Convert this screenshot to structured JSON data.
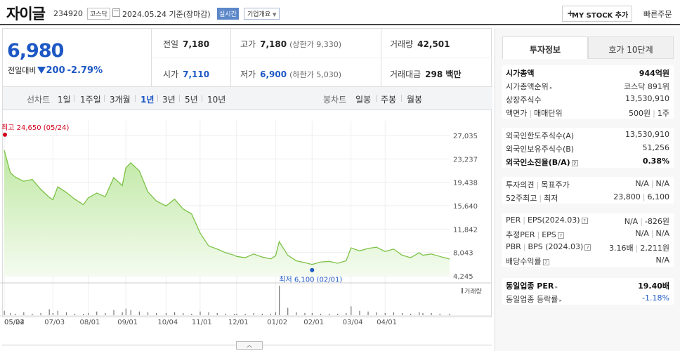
{
  "header": {
    "name": "자이글",
    "code": "234920",
    "market": "코스닥",
    "date": "2024.05.24",
    "basis": "기준(장마감)",
    "realtime": "실시간",
    "corp_overview": "기업개요",
    "mystock": "MY STOCK 추가",
    "fast_order": "빠른주문"
  },
  "price": {
    "current": "6,980",
    "change_label": "전일대비",
    "change": "200",
    "rate": "-2.79%"
  },
  "quote": {
    "prev_label": "전일",
    "prev": "7,180",
    "high_label": "고가",
    "high": "7,180",
    "upper_label": "(상한가",
    "upper": "9,330)",
    "volume_label": "거래량",
    "volume": "42,501",
    "open_label": "시가",
    "open": "7,110",
    "low_label": "저가",
    "low": "6,900",
    "lower_label": "(하한가",
    "lower": "5,030)",
    "amount_label": "거래대금",
    "amount": "298 백만"
  },
  "periods": {
    "line_label": "선차트",
    "items": [
      "1일",
      "1주일",
      "3개월",
      "1년",
      "3년",
      "5년",
      "10년"
    ],
    "active": "1년",
    "candle_label": "봉차트",
    "candle_items": [
      "일봉",
      "주봉",
      "월봉"
    ]
  },
  "chart_data": {
    "type": "area",
    "x": [
      "2023-05-24",
      "2023-05-29",
      "2023-06-02",
      "2023-06-09",
      "2023-06-16",
      "2023-06-23",
      "2023-06-30",
      "2023-07-03",
      "2023-07-07",
      "2023-07-14",
      "2023-07-21",
      "2023-07-28",
      "2023-08-01",
      "2023-08-08",
      "2023-08-15",
      "2023-08-22",
      "2023-08-29",
      "2023-09-01",
      "2023-09-05",
      "2023-09-12",
      "2023-09-19",
      "2023-09-26",
      "2023-10-04",
      "2023-10-11",
      "2023-10-18",
      "2023-10-25",
      "2023-11-01",
      "2023-11-08",
      "2023-11-15",
      "2023-11-22",
      "2023-11-29",
      "2023-12-01",
      "2023-12-08",
      "2023-12-15",
      "2023-12-22",
      "2023-12-29",
      "2024-01-02",
      "2024-01-05",
      "2024-01-12",
      "2024-01-19",
      "2024-01-26",
      "2024-02-01",
      "2024-02-08",
      "2024-02-15",
      "2024-02-22",
      "2024-02-29",
      "2024-03-04",
      "2024-03-11",
      "2024-03-18",
      "2024-03-25",
      "2024-04-01",
      "2024-04-08",
      "2024-04-15",
      "2024-04-22",
      "2024-04-29",
      "2024-05-02",
      "2024-05-09",
      "2024-05-16",
      "2024-05-24"
    ],
    "values": [
      24650,
      21000,
      20300,
      19600,
      19900,
      18300,
      17000,
      16600,
      18700,
      17800,
      16700,
      15800,
      16900,
      17700,
      17100,
      20200,
      18900,
      21800,
      22600,
      21300,
      17900,
      16400,
      15600,
      16700,
      15100,
      14300,
      11200,
      9100,
      8600,
      8000,
      7600,
      7400,
      7200,
      7800,
      7300,
      7000,
      7500,
      9800,
      7600,
      6700,
      6400,
      6100,
      6500,
      6600,
      6300,
      6700,
      8800,
      8300,
      8700,
      8900,
      8200,
      8600,
      7600,
      7200,
      8000,
      7600,
      7800,
      7400,
      6980
    ],
    "ylim": [
      4245,
      27035
    ],
    "yticks": [
      "27,035",
      "23,237",
      "19,438",
      "15,640",
      "11,842",
      "8,043",
      "4,245"
    ],
    "xticks": [
      "05/24",
      "07/03",
      "08/01",
      "09/01",
      "10/04",
      "11/01",
      "12/01",
      "01/02",
      "02/01",
      "03/04",
      "04/01",
      "05/02"
    ],
    "max_label": "최고 24,650 (05/24)",
    "min_label": "최저 6,100 (02/01)",
    "volume_label": "거래량",
    "volume": [
      6,
      3,
      2,
      4,
      2,
      3,
      8,
      3,
      6,
      4,
      2,
      2,
      3,
      5,
      3,
      7,
      4,
      9,
      7,
      5,
      4,
      3,
      3,
      4,
      3,
      2,
      5,
      4,
      3,
      2,
      2,
      2,
      2,
      3,
      2,
      2,
      4,
      40,
      10,
      4,
      3,
      3,
      2,
      2,
      2,
      3,
      12,
      6,
      5,
      4,
      3,
      4,
      3,
      2,
      4,
      3,
      3,
      2,
      2
    ]
  },
  "sidebar": {
    "tabs": [
      "투자정보",
      "호가 10단계"
    ],
    "active_tab": "투자정보",
    "market_cap_label": "시가총액",
    "market_cap": "944억원",
    "cap_rank_label": "시가총액순위",
    "cap_rank": "코스닥 891위",
    "shares_label": "상장주식수",
    "shares": "13,530,910",
    "par_label": "액면가",
    "unit_label": "매매단위",
    "par": "500원",
    "unit": "1주",
    "foreign_limit_label": "외국인한도주식수(A)",
    "foreign_limit": "13,530,910",
    "foreign_hold_label": "외국인보유주식수(B)",
    "foreign_hold": "51,256",
    "foreign_ratio_label": "외국인소진율(B/A)",
    "foreign_ratio": "0.38%",
    "opinion_label": "투자의견",
    "target_label": "목표주가",
    "opinion": "N/A",
    "target": "N/A",
    "week52_label": "52주최고",
    "week52_low_label": "최저",
    "week52_high": "23,800",
    "week52_low": "6,100",
    "per_label": "PER",
    "eps_label": "EPS(2024.03)",
    "per": "N/A",
    "eps": "-826원",
    "est_per_label": "추정PER",
    "est_eps_label": "EPS",
    "est_per": "N/A",
    "est_eps": "N/A",
    "pbr_label": "PBR",
    "bps_label": "BPS (2024.03)",
    "pbr": "3.16배",
    "bps": "2,211원",
    "div_label": "배당수익률",
    "div": "N/A",
    "sector_per_label": "동일업종 PER",
    "sector_per": "19.40배",
    "sector_rate_label": "동일업종 등락률",
    "sector_rate": "-1.18%"
  }
}
